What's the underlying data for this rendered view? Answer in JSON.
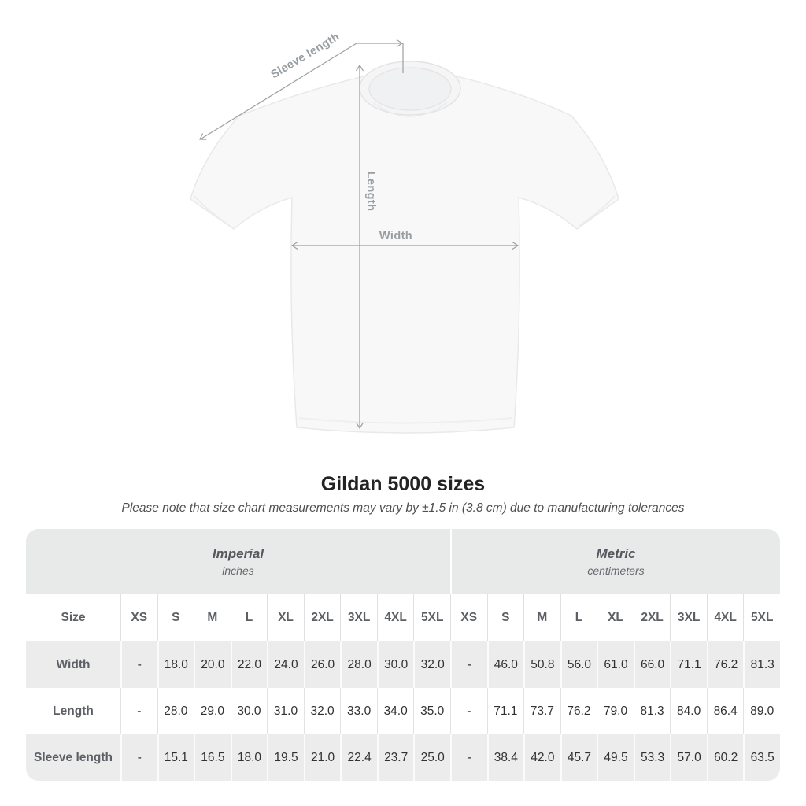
{
  "figure": {
    "labels": {
      "sleeve_length": "Sleeve length",
      "length": "Length",
      "width": "Width"
    }
  },
  "title": "Gildan 5000 sizes",
  "subtitle": "Please note that size chart measurements may vary by ±1.5 in (3.8 cm) due to manufacturing tolerances",
  "table": {
    "units": [
      {
        "name": "Imperial",
        "sub": "inches"
      },
      {
        "name": "Metric",
        "sub": "centimeters"
      }
    ],
    "size_header": "Size",
    "sizes": [
      "XS",
      "S",
      "M",
      "L",
      "XL",
      "2XL",
      "3XL",
      "4XL",
      "5XL"
    ],
    "rows": [
      {
        "label": "Width",
        "imperial": [
          "-",
          "18.0",
          "20.0",
          "22.0",
          "24.0",
          "26.0",
          "28.0",
          "30.0",
          "32.0"
        ],
        "metric": [
          "-",
          "46.0",
          "50.8",
          "56.0",
          "61.0",
          "66.0",
          "71.1",
          "76.2",
          "81.3"
        ]
      },
      {
        "label": "Length",
        "imperial": [
          "-",
          "28.0",
          "29.0",
          "30.0",
          "31.0",
          "32.0",
          "33.0",
          "34.0",
          "35.0"
        ],
        "metric": [
          "-",
          "71.1",
          "73.7",
          "76.2",
          "79.0",
          "81.3",
          "84.0",
          "86.4",
          "89.0"
        ]
      },
      {
        "label": "Sleeve length",
        "imperial": [
          "-",
          "15.1",
          "16.5",
          "18.0",
          "19.5",
          "21.0",
          "22.4",
          "23.7",
          "25.0"
        ],
        "metric": [
          "-",
          "38.4",
          "42.0",
          "45.7",
          "49.5",
          "53.3",
          "57.0",
          "60.2",
          "63.5"
        ]
      }
    ]
  },
  "colors": {
    "band_background": "#e8e9e9",
    "row_stripe": "#ececed",
    "annotation_gray": "#9aa0a3",
    "title_text": "#232323",
    "value_text": "#2f3133",
    "shirt_fill": "#f8f8f9"
  }
}
